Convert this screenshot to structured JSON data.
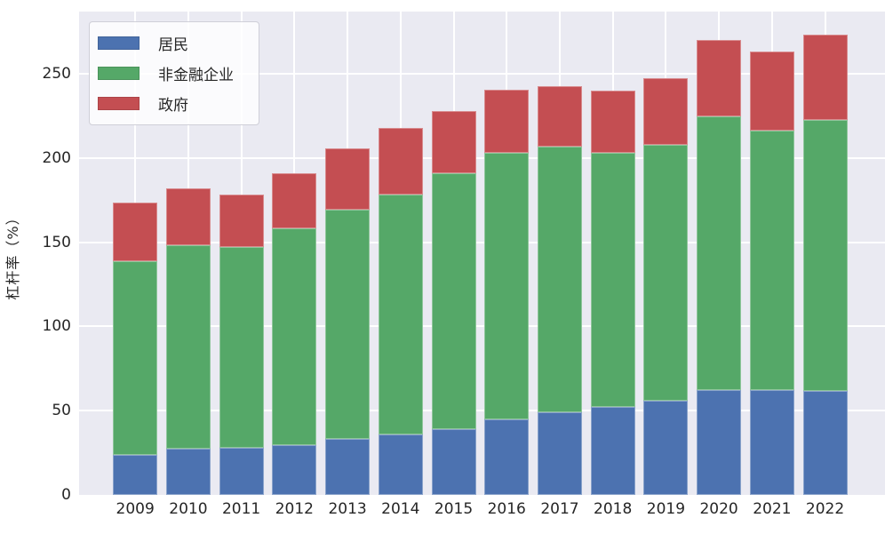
{
  "colors": {
    "figure_bg": "#ffffff",
    "plot_bg": "#EAEAF2",
    "grid": "#ffffff",
    "text": "#262626",
    "series_blue": "#4C72B0",
    "series_green": "#55A868",
    "series_red": "#C44E52"
  },
  "chart_data": {
    "type": "bar",
    "stacked": true,
    "title": "",
    "xlabel": "",
    "ylabel": "杠杆率（%）",
    "categories": [
      "2009",
      "2010",
      "2011",
      "2012",
      "2013",
      "2014",
      "2015",
      "2016",
      "2017",
      "2018",
      "2019",
      "2020",
      "2021",
      "2022"
    ],
    "series": [
      {
        "name": "居民",
        "color": "#4C72B0",
        "values": [
          23.9,
          27.2,
          27.9,
          29.7,
          33.4,
          36.1,
          39.2,
          44.8,
          49.2,
          52.1,
          56.1,
          62.2,
          62.2,
          61.9
        ]
      },
      {
        "name": "非金融企业",
        "color": "#55A868",
        "values": [
          115.1,
          120.8,
          119.1,
          128.6,
          136.1,
          142.4,
          151.8,
          158.3,
          157.6,
          151.2,
          151.9,
          162.3,
          154.1,
          160.9
        ]
      },
      {
        "name": "政府",
        "color": "#C44E52",
        "values": [
          34.4,
          33.8,
          31.4,
          32.9,
          36.3,
          39.3,
          37.0,
          37.4,
          35.9,
          36.5,
          39.5,
          45.7,
          46.8,
          50.4
        ]
      }
    ],
    "totals": [
      173.4,
      181.8,
      178.4,
      191.2,
      205.8,
      217.8,
      228.0,
      240.5,
      242.7,
      239.8,
      247.5,
      270.2,
      263.1,
      273.2
    ],
    "ylim": [
      0,
      287
    ],
    "yticks": [
      0,
      50,
      100,
      150,
      200,
      250
    ],
    "grid": true,
    "legend_position": "upper left"
  }
}
